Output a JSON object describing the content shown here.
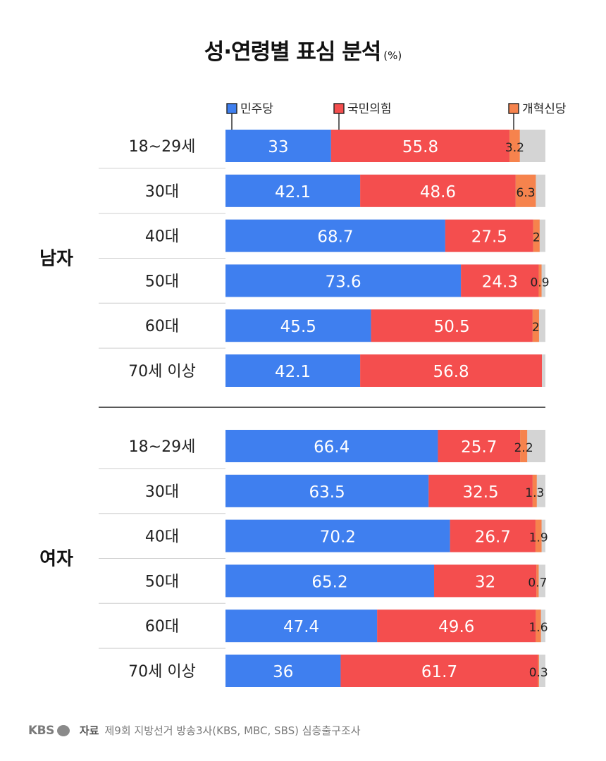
{
  "header": {
    "title": "성·연령별 표심 분석",
    "unit": "(%)"
  },
  "footer": {
    "logo": "KBS",
    "source_label": "자료",
    "source_text": "제9회 지방선거 방송3사(KBS, MBC, SBS) 심층출구조사"
  },
  "colors": {
    "democratic": "#3f7fef",
    "ppp": "#f44e4e",
    "reform": "#f6834d",
    "other": "#d4d4d4"
  },
  "chart_data": {
    "type": "bar",
    "orientation": "horizontal",
    "stacked": true,
    "xlim": [
      0,
      100
    ],
    "legend": [
      "민주당",
      "국민의힘",
      "개혁신당"
    ],
    "groups": [
      {
        "name": "남자",
        "rows": [
          {
            "label": "18~29세",
            "values": [
              33,
              55.8,
              3.2
            ],
            "labels": [
              "33",
              "55.8",
              "3.2"
            ]
          },
          {
            "label": "30대",
            "values": [
              42.1,
              48.6,
              6.3
            ],
            "labels": [
              "42.1",
              "48.6",
              "6.3"
            ]
          },
          {
            "label": "40대",
            "values": [
              68.7,
              27.5,
              2
            ],
            "labels": [
              "68.7",
              "27.5",
              "2"
            ]
          },
          {
            "label": "50대",
            "values": [
              73.6,
              24.3,
              0.9
            ],
            "labels": [
              "73.6",
              "24.3",
              "0.9"
            ]
          },
          {
            "label": "60대",
            "values": [
              45.5,
              50.5,
              2
            ],
            "labels": [
              "45.5",
              "50.5",
              "2"
            ]
          },
          {
            "label": "70세 이상",
            "values": [
              42.1,
              56.8,
              0
            ],
            "labels": [
              "42.1",
              "56.8",
              ""
            ]
          }
        ]
      },
      {
        "name": "여자",
        "rows": [
          {
            "label": "18~29세",
            "values": [
              66.4,
              25.7,
              2.2
            ],
            "labels": [
              "66.4",
              "25.7",
              "2.2"
            ]
          },
          {
            "label": "30대",
            "values": [
              63.5,
              32.5,
              1.3
            ],
            "labels": [
              "63.5",
              "32.5",
              "1.3"
            ]
          },
          {
            "label": "40대",
            "values": [
              70.2,
              26.7,
              1.9
            ],
            "labels": [
              "70.2",
              "26.7",
              "1.9"
            ]
          },
          {
            "label": "50대",
            "values": [
              65.2,
              32,
              0.7
            ],
            "labels": [
              "65.2",
              "32",
              "0.7"
            ]
          },
          {
            "label": "60대",
            "values": [
              47.4,
              49.6,
              1.6
            ],
            "labels": [
              "47.4",
              "49.6",
              "1.6"
            ]
          },
          {
            "label": "70세 이상",
            "values": [
              36,
              61.7,
              0.3
            ],
            "labels": [
              "36",
              "61.7",
              "0.3"
            ]
          }
        ]
      }
    ]
  }
}
